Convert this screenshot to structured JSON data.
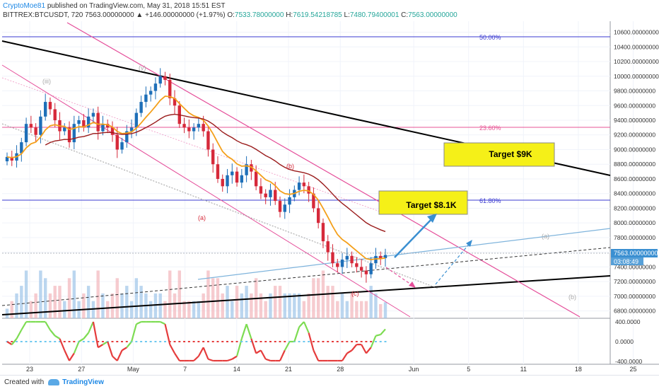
{
  "header": {
    "author": "CryptoMoe81",
    "published": "published on TradingView.com, May 31, 2018 15:51 EST",
    "symbol_line_prefix": "BITTREX:BTCUSDT, 720  7563.00000000  ▲ +146.00000000 (+1.97%)",
    "o_label": "O:",
    "o_val": "7533.78000000",
    "h_label": "H:",
    "h_val": "7619.54218785",
    "l_label": "L:",
    "l_val": "7480.79400001",
    "c_label": "C:",
    "c_val": "7563.00000000"
  },
  "price_axis": [
    "10600.00000000",
    "10400.00000000",
    "10200.00000000",
    "10000.00000000",
    "9800.00000000",
    "9600.00000000",
    "9400.00000000",
    "9200.00000000",
    "9000.00000000",
    "8800.00000000",
    "8600.00000000",
    "8400.00000000",
    "8200.00000000",
    "8000.00000000",
    "7800.00000000",
    "7600.00000000",
    "7400.00000000",
    "7200.00000000",
    "7000.00000000",
    "6800.00000000"
  ],
  "price_tag": "7563.00000000",
  "timer_tag": "03:08:49",
  "indicator_axis": [
    "400.0000",
    "0.0000",
    "-400.0000"
  ],
  "time_axis": [
    "23",
    "27",
    "May",
    "7",
    "14",
    "21",
    "28",
    "Jun",
    "5",
    "11",
    "18",
    "25"
  ],
  "fib_levels": [
    "50.00%",
    "23.60%",
    "61.80%"
  ],
  "targets": [
    "Target $9K",
    "Target $8.1K"
  ],
  "wave_labels": [
    "(iii)",
    "(v)",
    "(a)",
    "(b)",
    "(c)",
    "(a)",
    "(b)"
  ],
  "footer": {
    "created": "Created with",
    "brand": "TradingView"
  },
  "colors": {
    "up": "#1e6fb8",
    "down": "#d6293a",
    "fib": "#3b3bd1",
    "fib236": "#e75494",
    "target_fill": "#f5f018",
    "ema_fast": "#f4a01b",
    "ema_slow": "#9a1b1b",
    "trend": "#000000",
    "channel": "#e54e9a",
    "arrow": "#3a8fd1"
  },
  "chart_data": {
    "type": "candlestick",
    "symbol": "BITTREX:BTCUSDT",
    "interval": "720",
    "ylim": [
      6700,
      10750
    ],
    "last": 7563,
    "ohlc_last": {
      "o": 7533.78,
      "h": 7619.54218785,
      "l": 7480.794,
      "c": 7563.0
    },
    "close": [
      8900,
      8850,
      8950,
      9100,
      9350,
      9300,
      9200,
      9450,
      9650,
      9550,
      9400,
      9250,
      9300,
      9100,
      9350,
      9400,
      9300,
      9450,
      9500,
      9250,
      9350,
      9300,
      9200,
      9000,
      9100,
      9250,
      9300,
      9500,
      9650,
      9750,
      9800,
      9900,
      10000,
      9950,
      9700,
      9600,
      9350,
      9300,
      9250,
      9300,
      9350,
      9250,
      9000,
      8800,
      8600,
      8500,
      8650,
      8700,
      8550,
      8650,
      8800,
      8700,
      8500,
      8400,
      8350,
      8450,
      8300,
      8150,
      8250,
      8350,
      8450,
      8550,
      8500,
      8400,
      8200,
      8000,
      7750,
      7600,
      7450,
      7400,
      7500,
      7550,
      7450,
      7400,
      7350,
      7300,
      7450,
      7550,
      7520,
      7563
    ]
  }
}
